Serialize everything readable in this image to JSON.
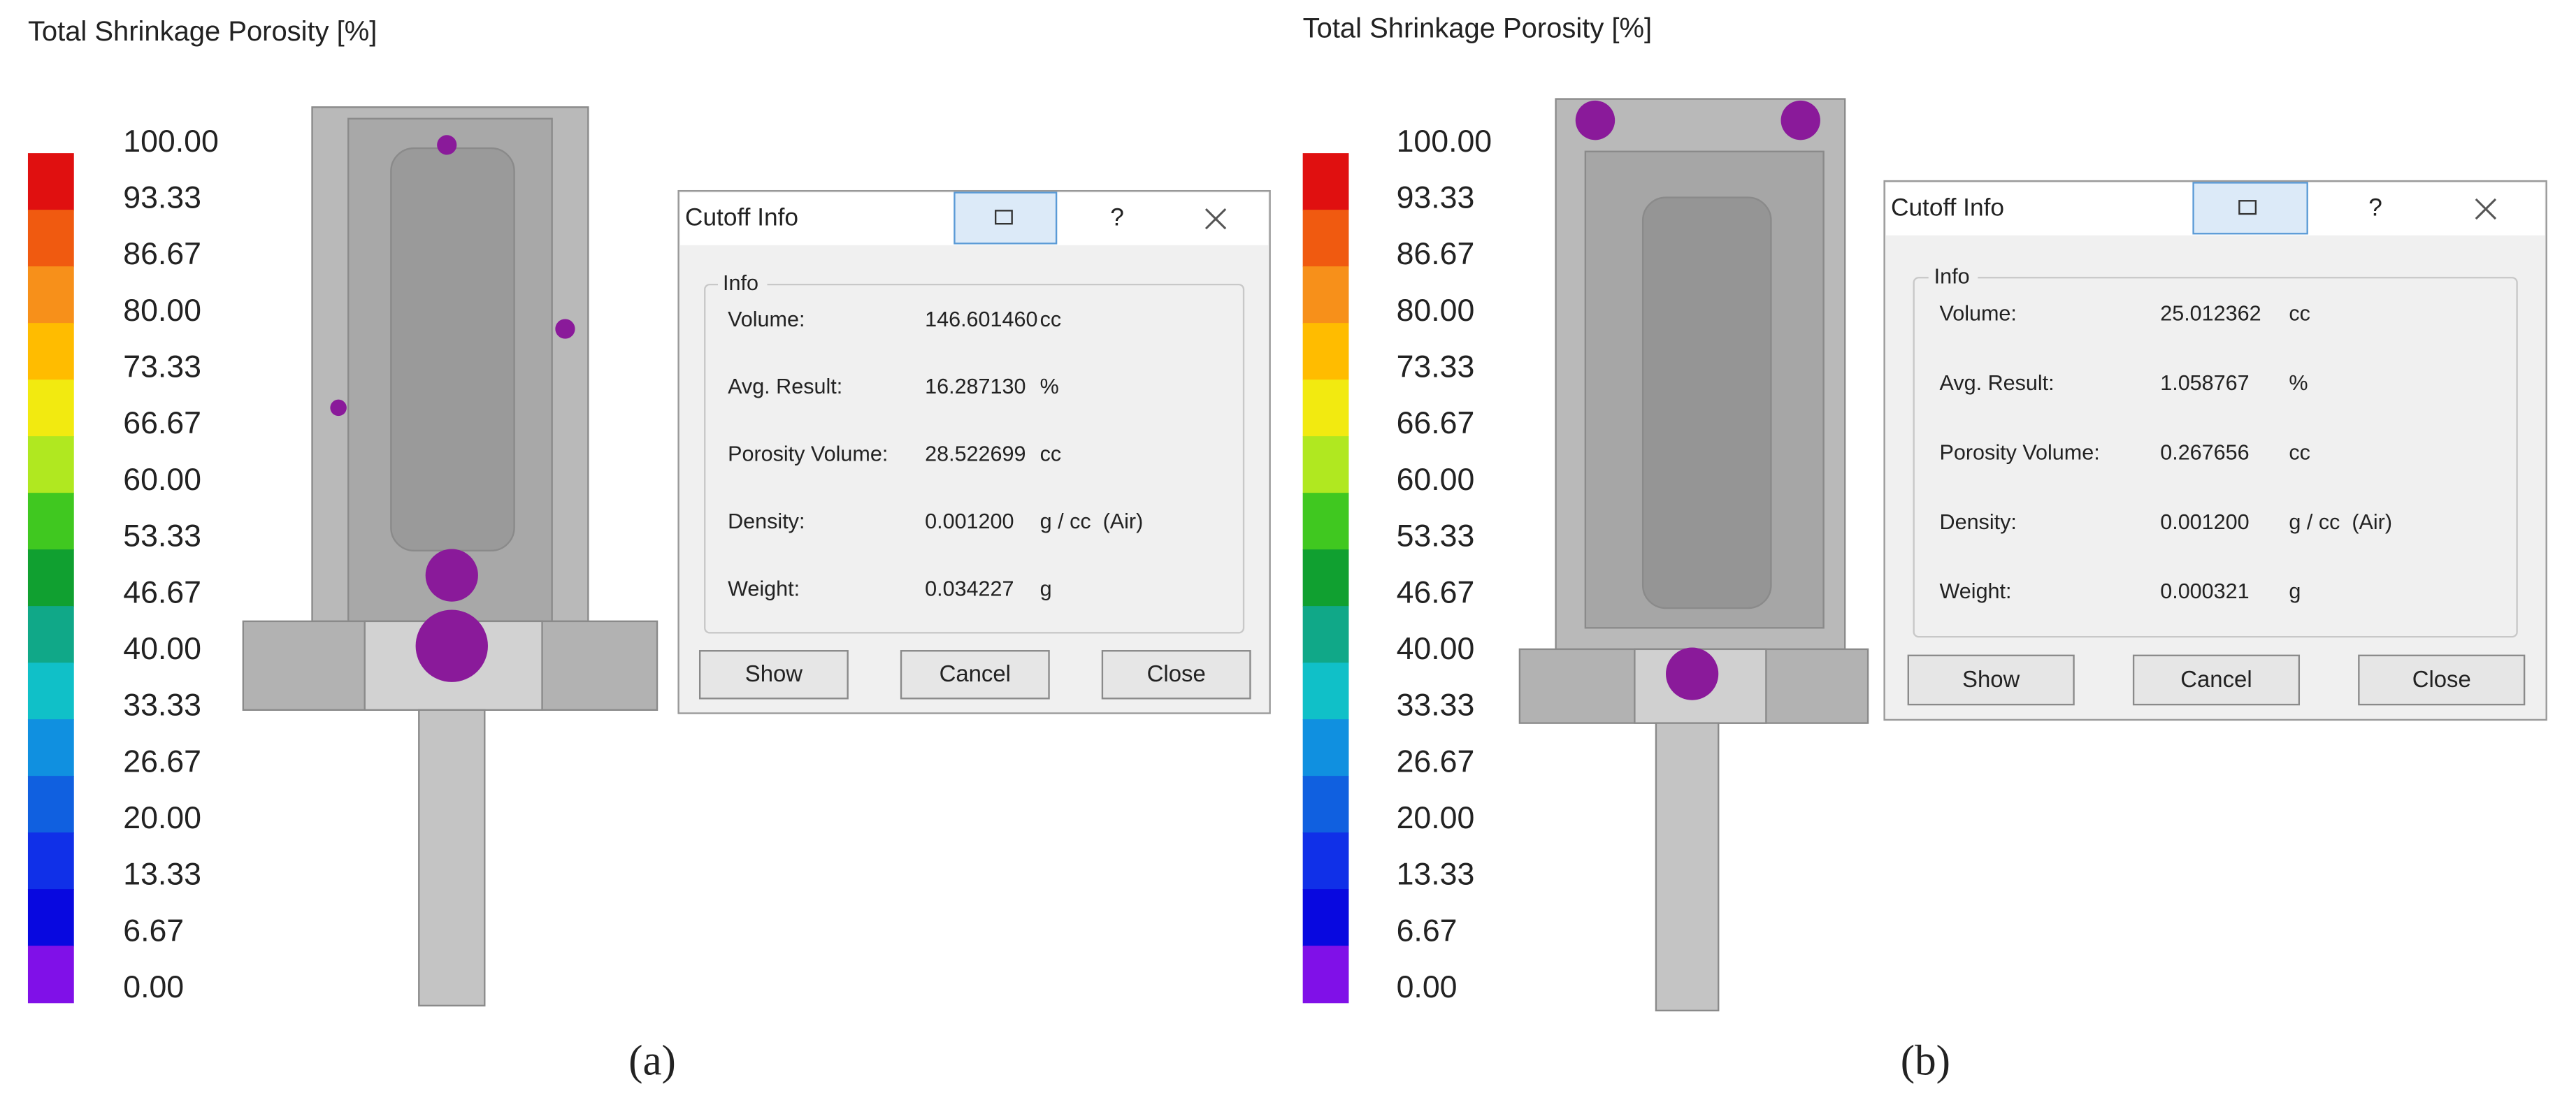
{
  "panels": [
    {
      "caption": "(a)",
      "title": "Total Shrinkage Porosity [%]",
      "legend": [
        "100.00",
        "93.33",
        "86.67",
        "80.00",
        "73.33",
        "66.67",
        "60.00",
        "53.33",
        "46.67",
        "40.00",
        "33.33",
        "26.67",
        "20.00",
        "13.33",
        "6.67",
        "0.00"
      ],
      "dialog": {
        "title": "Cutoff Info",
        "help": "?",
        "group": "Info",
        "rows": [
          {
            "label": "Volume:",
            "value": "146.601460",
            "unit": "cc"
          },
          {
            "label": "Avg. Result:",
            "value": "16.287130",
            "unit": "%"
          },
          {
            "label": "Porosity Volume:",
            "value": "28.522699",
            "unit": "cc"
          },
          {
            "label": "Density:",
            "value": "0.001200",
            "unit": "g / cc  (Air)"
          },
          {
            "label": "Weight:",
            "value": "0.034227",
            "unit": "g"
          }
        ],
        "buttons": [
          "Show",
          "Cancel",
          "Close"
        ]
      }
    },
    {
      "caption": "(b)",
      "title": "Total Shrinkage Porosity [%]",
      "legend": [
        "100.00",
        "93.33",
        "86.67",
        "80.00",
        "73.33",
        "66.67",
        "60.00",
        "53.33",
        "46.67",
        "40.00",
        "33.33",
        "26.67",
        "20.00",
        "13.33",
        "6.67",
        "0.00"
      ],
      "dialog": {
        "title": "Cutoff Info",
        "help": "?",
        "group": "Info",
        "rows": [
          {
            "label": "Volume:",
            "value": "25.012362",
            "unit": "cc"
          },
          {
            "label": "Avg. Result:",
            "value": "1.058767",
            "unit": "%"
          },
          {
            "label": "Porosity Volume:",
            "value": "0.267656",
            "unit": "cc"
          },
          {
            "label": "Density:",
            "value": "0.001200",
            "unit": "g / cc  (Air)"
          },
          {
            "label": "Weight:",
            "value": "0.000321",
            "unit": "g"
          }
        ],
        "buttons": [
          "Show",
          "Cancel",
          "Close"
        ]
      }
    }
  ]
}
